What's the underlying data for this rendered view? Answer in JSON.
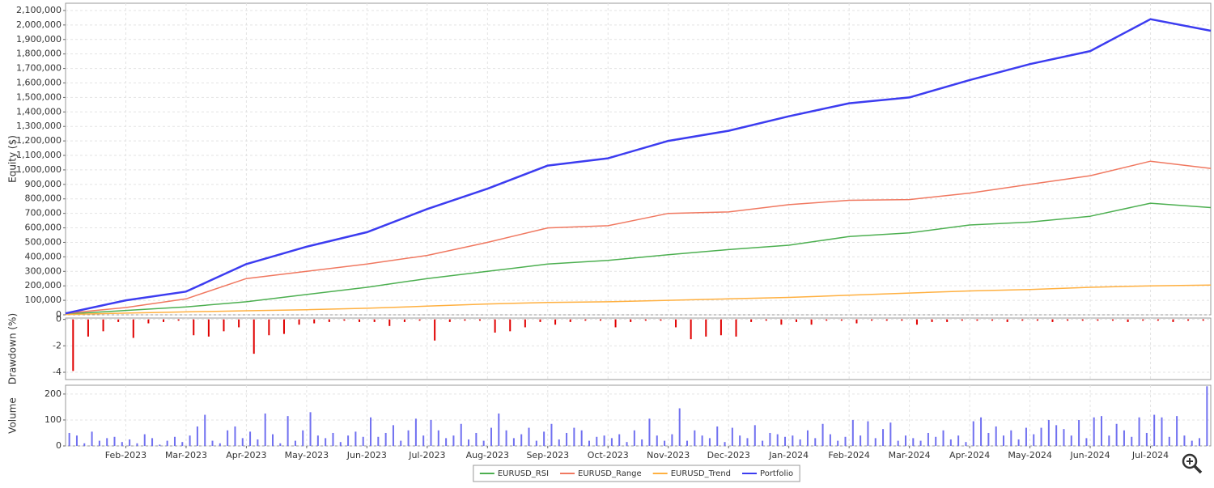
{
  "chart_data": [
    {
      "type": "line",
      "y_label": "Equity ($)",
      "x": [
        "2023-01",
        "2023-02",
        "2023-03",
        "2023-04",
        "2023-05",
        "2023-06",
        "2023-07",
        "2023-08",
        "2023-09",
        "2023-10",
        "2023-11",
        "2023-12",
        "2024-01",
        "2024-02",
        "2024-03",
        "2024-04",
        "2024-05",
        "2024-06",
        "2024-07",
        "2024-08"
      ],
      "xlim": [
        "2023-01",
        "2024-08"
      ],
      "ylim": [
        0,
        2150000
      ],
      "yticks": [
        0,
        {
          "value": 100000,
          "label": "100,000"
        },
        {
          "value": 200000,
          "label": "200,000"
        },
        {
          "value": 300000,
          "label": "300,000"
        },
        {
          "value": 400000,
          "label": "400,000"
        },
        {
          "value": 500000,
          "label": "500,000"
        },
        {
          "value": 600000,
          "label": "600,000"
        },
        {
          "value": 700000,
          "label": "700,000"
        },
        {
          "value": 800000,
          "label": "800,000"
        },
        {
          "value": 900000,
          "label": "900,000"
        },
        {
          "value": 1000000,
          "label": "1,000,000"
        },
        {
          "value": 1100000,
          "label": "1,100,000"
        },
        {
          "value": 1200000,
          "label": "1,200,000"
        },
        {
          "value": 1300000,
          "label": "1,300,000"
        },
        {
          "value": 1400000,
          "label": "1,400,000"
        },
        {
          "value": 1500000,
          "label": "1,500,000"
        },
        {
          "value": 1600000,
          "label": "1,600,000"
        },
        {
          "value": 1700000,
          "label": "1,700,000"
        },
        {
          "value": 1800000,
          "label": "1,800,000"
        },
        {
          "value": 1900000,
          "label": "1,900,000"
        },
        {
          "value": 2000000,
          "label": "2,000,000"
        },
        {
          "value": 2100000,
          "label": "2,100,000"
        }
      ],
      "grid": true,
      "legend": "bottom",
      "series": [
        {
          "name": "EURUSD_RSI",
          "color": "#4caf50",
          "values": [
            5000,
            30000,
            55000,
            90000,
            140000,
            190000,
            250000,
            300000,
            350000,
            375000,
            415000,
            450000,
            480000,
            540000,
            565000,
            620000,
            640000,
            680000,
            770000,
            740000
          ]
        },
        {
          "name": "EURUSD_Range",
          "color": "#f07860",
          "values": [
            10000,
            50000,
            110000,
            250000,
            300000,
            350000,
            410000,
            500000,
            600000,
            615000,
            700000,
            710000,
            760000,
            790000,
            795000,
            840000,
            900000,
            960000,
            1060000,
            1010000
          ]
        },
        {
          "name": "EURUSD_Trend",
          "color": "#ffb040",
          "values": [
            2000,
            12000,
            20000,
            28000,
            35000,
            45000,
            60000,
            75000,
            85000,
            90000,
            100000,
            110000,
            120000,
            135000,
            150000,
            165000,
            175000,
            190000,
            200000,
            205000
          ]
        },
        {
          "name": "Portfolio",
          "color": "#3c3cf0",
          "values": [
            10000,
            100000,
            160000,
            350000,
            470000,
            570000,
            730000,
            870000,
            1030000,
            1080000,
            1200000,
            1270000,
            1370000,
            1460000,
            1500000,
            1620000,
            1730000,
            1820000,
            2040000,
            1960000
          ]
        }
      ]
    },
    {
      "type": "bar",
      "y_label": "Drawdown (%)",
      "color": "#e00000",
      "x": [
        "2023-01",
        "2023-02",
        "2023-03",
        "2023-04",
        "2023-05",
        "2023-06",
        "2023-07",
        "2023-08",
        "2023-09",
        "2023-10",
        "2023-11",
        "2023-12",
        "2024-01",
        "2024-02",
        "2024-03",
        "2024-04",
        "2024-05",
        "2024-06",
        "2024-07"
      ],
      "xlim": [
        "2023-01",
        "2024-08"
      ],
      "ylim": [
        -4.55,
        0.1
      ],
      "yticks": [
        0,
        -2,
        -4
      ],
      "grid": true,
      "values": [
        [
          -3.9,
          -1.3,
          -0.9,
          -0.2
        ],
        [
          -1.4,
          -0.3,
          -0.2,
          -0.1
        ],
        [
          -1.2,
          -1.3,
          -0.9,
          -0.6
        ],
        [
          -2.6,
          -1.2,
          -1.1,
          -0.4
        ],
        [
          -0.3,
          -0.2,
          -0.1,
          -0.2
        ],
        [
          -0.2,
          -0.5,
          -0.2,
          -0.1
        ],
        [
          -1.6,
          -0.2,
          -0.1,
          -0.1
        ],
        [
          -1.0,
          -0.9,
          -0.6,
          -0.2
        ],
        [
          -0.4,
          -0.2,
          -0.1,
          -0.1
        ],
        [
          -0.6,
          -0.2,
          -0.1,
          -0.1
        ],
        [
          -0.6,
          -1.5,
          -1.3,
          -1.2
        ],
        [
          -1.3,
          -0.2,
          -0.1,
          -0.4
        ],
        [
          -0.2,
          -0.4,
          -0.1,
          -0.1
        ],
        [
          -0.3,
          -0.1,
          -0.1,
          -0.1
        ],
        [
          -0.4,
          -0.2,
          -0.2,
          -0.1
        ],
        [
          -0.1,
          -0.1,
          -0.2,
          -0.1
        ],
        [
          -0.1,
          -0.2,
          -0.1,
          -0.1
        ],
        [
          -0.1,
          -0.1,
          -0.2,
          -0.1
        ],
        [
          -0.1,
          -0.2,
          -0.1,
          -0.1
        ]
      ]
    },
    {
      "type": "bar",
      "y_label": "Volume",
      "color": "#7070f0",
      "x": [
        "2023-01",
        "2023-02",
        "2023-03",
        "2023-04",
        "2023-05",
        "2023-06",
        "2023-07",
        "2023-08",
        "2023-09",
        "2023-10",
        "2023-11",
        "2023-12",
        "2024-01",
        "2024-02",
        "2024-03",
        "2024-04",
        "2024-05",
        "2024-06",
        "2024-07"
      ],
      "xlim": [
        "2023-01",
        "2024-08"
      ],
      "ylim": [
        0,
        234
      ],
      "yticks": [
        0,
        100,
        200
      ],
      "grid": true,
      "xticks": [
        {
          "value": "2023-02",
          "label": "Feb-2023"
        },
        {
          "value": "2023-03",
          "label": "Mar-2023"
        },
        {
          "value": "2023-04",
          "label": "Apr-2023"
        },
        {
          "value": "2023-05",
          "label": "May-2023"
        },
        {
          "value": "2023-06",
          "label": "Jun-2023"
        },
        {
          "value": "2023-07",
          "label": "Jul-2023"
        },
        {
          "value": "2023-08",
          "label": "Aug-2023"
        },
        {
          "value": "2023-09",
          "label": "Sep-2023"
        },
        {
          "value": "2023-10",
          "label": "Oct-2023"
        },
        {
          "value": "2023-11",
          "label": "Nov-2023"
        },
        {
          "value": "2023-12",
          "label": "Dec-2023"
        },
        {
          "value": "2024-01",
          "label": "Jan-2024"
        },
        {
          "value": "2024-02",
          "label": "Feb-2024"
        },
        {
          "value": "2024-03",
          "label": "Mar-2024"
        },
        {
          "value": "2024-04",
          "label": "Apr-2024"
        },
        {
          "value": "2024-05",
          "label": "May-2024"
        },
        {
          "value": "2024-06",
          "label": "Jun-2024"
        },
        {
          "value": "2024-07",
          "label": "Jul-2024"
        }
      ],
      "values": [
        [
          50,
          40,
          10,
          55,
          20,
          30,
          35,
          15
        ],
        [
          25,
          10,
          45,
          30,
          5,
          20,
          35,
          15
        ],
        [
          40,
          75,
          120,
          20,
          10,
          60,
          75,
          30
        ],
        [
          55,
          25,
          125,
          45,
          10,
          115,
          20,
          60
        ],
        [
          130,
          40,
          30,
          50,
          15,
          40,
          55,
          35
        ],
        [
          110,
          35,
          50,
          80,
          20,
          60,
          105,
          40
        ],
        [
          100,
          60,
          30,
          40,
          85,
          25,
          50,
          20
        ],
        [
          70,
          125,
          60,
          30,
          45,
          70,
          20,
          55
        ],
        [
          85,
          25,
          50,
          70,
          60,
          20,
          35,
          40
        ],
        [
          30,
          45,
          15,
          60,
          25,
          105,
          40,
          20
        ],
        [
          45,
          145,
          20,
          60,
          40,
          30,
          75,
          15
        ],
        [
          70,
          40,
          30,
          80,
          20,
          50,
          45,
          35
        ],
        [
          40,
          25,
          60,
          30,
          85,
          45,
          20,
          35
        ],
        [
          100,
          40,
          95,
          30,
          65,
          90,
          20,
          40
        ],
        [
          30,
          20,
          50,
          35,
          60,
          25,
          40,
          15
        ],
        [
          95,
          110,
          50,
          75,
          40,
          60,
          25,
          70
        ],
        [
          45,
          70,
          100,
          80,
          65,
          40,
          100,
          30
        ],
        [
          110,
          115,
          40,
          85,
          60,
          35,
          110,
          50
        ],
        [
          120,
          110,
          35,
          115,
          40,
          20,
          30,
          230
        ]
      ]
    }
  ]
}
